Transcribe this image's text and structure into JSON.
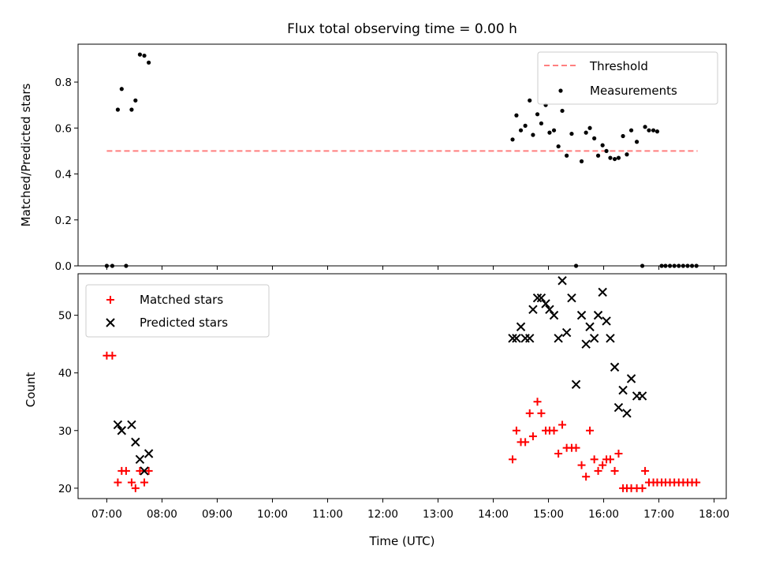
{
  "chart_data": [
    {
      "type": "scatter",
      "title": "Flux total observing time = 0.00 h",
      "xlabel": "",
      "ylabel": "Matched/Predicted stars",
      "xlim": [
        6.48,
        18.22
      ],
      "ylim": [
        0,
        0.965
      ],
      "xticks_hours": [
        7,
        8,
        9,
        10,
        11,
        12,
        13,
        14,
        15,
        16,
        17,
        18
      ],
      "yticks": [
        0.0,
        0.2,
        0.4,
        0.6,
        0.8
      ],
      "ytick_labels": [
        "0.0",
        "0.2",
        "0.4",
        "0.6",
        "0.8"
      ],
      "legend_position": "top-right",
      "threshold": {
        "name": "Threshold",
        "y": 0.5,
        "x": [
          7.0,
          17.7
        ],
        "color": "#ff7f7f",
        "style": "dashed"
      },
      "series": [
        {
          "name": "Measurements",
          "marker": "dot",
          "color": "#000000",
          "points": [
            [
              7.0,
              0.0
            ],
            [
              7.1,
              0.0
            ],
            [
              7.35,
              0.0
            ],
            [
              7.2,
              0.68
            ],
            [
              7.27,
              0.77
            ],
            [
              7.45,
              0.68
            ],
            [
              7.52,
              0.72
            ],
            [
              7.6,
              0.92
            ],
            [
              7.68,
              0.915
            ],
            [
              7.76,
              0.885
            ],
            [
              14.35,
              0.55
            ],
            [
              14.42,
              0.655
            ],
            [
              14.5,
              0.59
            ],
            [
              14.58,
              0.61
            ],
            [
              14.66,
              0.72
            ],
            [
              14.72,
              0.57
            ],
            [
              14.8,
              0.66
            ],
            [
              14.87,
              0.62
            ],
            [
              14.95,
              0.7
            ],
            [
              15.02,
              0.58
            ],
            [
              15.1,
              0.59
            ],
            [
              15.18,
              0.52
            ],
            [
              15.25,
              0.675
            ],
            [
              15.33,
              0.48
            ],
            [
              15.42,
              0.575
            ],
            [
              15.5,
              0.0
            ],
            [
              15.6,
              0.455
            ],
            [
              15.68,
              0.58
            ],
            [
              15.75,
              0.6
            ],
            [
              15.83,
              0.555
            ],
            [
              15.9,
              0.48
            ],
            [
              15.98,
              0.525
            ],
            [
              16.05,
              0.5
            ],
            [
              16.12,
              0.47
            ],
            [
              16.2,
              0.465
            ],
            [
              16.27,
              0.47
            ],
            [
              16.35,
              0.565
            ],
            [
              16.42,
              0.485
            ],
            [
              16.5,
              0.59
            ],
            [
              16.6,
              0.54
            ],
            [
              16.7,
              0.0
            ],
            [
              16.75,
              0.605
            ],
            [
              16.82,
              0.59
            ],
            [
              16.9,
              0.59
            ],
            [
              16.97,
              0.585
            ],
            [
              17.05,
              0.0
            ],
            [
              17.12,
              0.0
            ],
            [
              17.2,
              0.0
            ],
            [
              17.28,
              0.0
            ],
            [
              17.36,
              0.0
            ],
            [
              17.44,
              0.0
            ],
            [
              17.52,
              0.0
            ],
            [
              17.6,
              0.0
            ],
            [
              17.68,
              0.0
            ]
          ]
        }
      ]
    },
    {
      "type": "scatter",
      "title": "",
      "xlabel": "Time (UTC)",
      "ylabel": "Count",
      "xlim": [
        6.48,
        18.22
      ],
      "ylim": [
        18.2,
        57.2
      ],
      "xticks_hours": [
        7,
        8,
        9,
        10,
        11,
        12,
        13,
        14,
        15,
        16,
        17,
        18
      ],
      "xtick_labels": [
        "07:00",
        "08:00",
        "09:00",
        "10:00",
        "11:00",
        "12:00",
        "13:00",
        "14:00",
        "15:00",
        "16:00",
        "17:00",
        "18:00"
      ],
      "yticks": [
        20,
        30,
        40,
        50
      ],
      "ytick_labels": [
        "20",
        "30",
        "40",
        "50"
      ],
      "legend_position": "top-left",
      "series": [
        {
          "name": "Matched stars",
          "marker": "plus",
          "color": "#ff0000",
          "points": [
            [
              7.0,
              43
            ],
            [
              7.1,
              43
            ],
            [
              7.2,
              21
            ],
            [
              7.27,
              23
            ],
            [
              7.35,
              23
            ],
            [
              7.45,
              21
            ],
            [
              7.52,
              20
            ],
            [
              7.6,
              23
            ],
            [
              7.68,
              21
            ],
            [
              7.76,
              23
            ],
            [
              14.35,
              25
            ],
            [
              14.42,
              30
            ],
            [
              14.5,
              28
            ],
            [
              14.58,
              28
            ],
            [
              14.66,
              33
            ],
            [
              14.72,
              29
            ],
            [
              14.8,
              35
            ],
            [
              14.87,
              33
            ],
            [
              14.95,
              30
            ],
            [
              15.02,
              30
            ],
            [
              15.1,
              30
            ],
            [
              15.18,
              26
            ],
            [
              15.25,
              31
            ],
            [
              15.33,
              27
            ],
            [
              15.42,
              27
            ],
            [
              15.5,
              27
            ],
            [
              15.6,
              24
            ],
            [
              15.68,
              22
            ],
            [
              15.75,
              30
            ],
            [
              15.83,
              25
            ],
            [
              15.9,
              23
            ],
            [
              15.98,
              24
            ],
            [
              16.05,
              25
            ],
            [
              16.12,
              25
            ],
            [
              16.2,
              23
            ],
            [
              16.27,
              26
            ],
            [
              16.35,
              20
            ],
            [
              16.42,
              20
            ],
            [
              16.5,
              20
            ],
            [
              16.6,
              20
            ],
            [
              16.7,
              20
            ],
            [
              16.75,
              23
            ],
            [
              16.82,
              21
            ],
            [
              16.9,
              21
            ],
            [
              16.97,
              21
            ],
            [
              17.05,
              21
            ],
            [
              17.12,
              21
            ],
            [
              17.2,
              21
            ],
            [
              17.28,
              21
            ],
            [
              17.36,
              21
            ],
            [
              17.44,
              21
            ],
            [
              17.52,
              21
            ],
            [
              17.6,
              21
            ],
            [
              17.68,
              21
            ]
          ]
        },
        {
          "name": "Predicted stars",
          "marker": "x",
          "color": "#000000",
          "points": [
            [
              7.2,
              31
            ],
            [
              7.27,
              30
            ],
            [
              7.45,
              31
            ],
            [
              7.52,
              28
            ],
            [
              7.6,
              25
            ],
            [
              7.68,
              23
            ],
            [
              7.76,
              26
            ],
            [
              14.35,
              46
            ],
            [
              14.42,
              46
            ],
            [
              14.5,
              48
            ],
            [
              14.58,
              46
            ],
            [
              14.66,
              46
            ],
            [
              14.72,
              51
            ],
            [
              14.8,
              53
            ],
            [
              14.87,
              53
            ],
            [
              14.95,
              52
            ],
            [
              15.02,
              51
            ],
            [
              15.1,
              50
            ],
            [
              15.18,
              46
            ],
            [
              15.25,
              56
            ],
            [
              15.33,
              47
            ],
            [
              15.42,
              53
            ],
            [
              15.5,
              38
            ],
            [
              15.6,
              50
            ],
            [
              15.68,
              45
            ],
            [
              15.75,
              48
            ],
            [
              15.83,
              46
            ],
            [
              15.9,
              50
            ],
            [
              15.98,
              54
            ],
            [
              16.05,
              49
            ],
            [
              16.12,
              46
            ],
            [
              16.2,
              41
            ],
            [
              16.27,
              34
            ],
            [
              16.35,
              37
            ],
            [
              16.42,
              33
            ],
            [
              16.5,
              39
            ],
            [
              16.6,
              36
            ],
            [
              16.7,
              36
            ]
          ]
        }
      ]
    }
  ]
}
